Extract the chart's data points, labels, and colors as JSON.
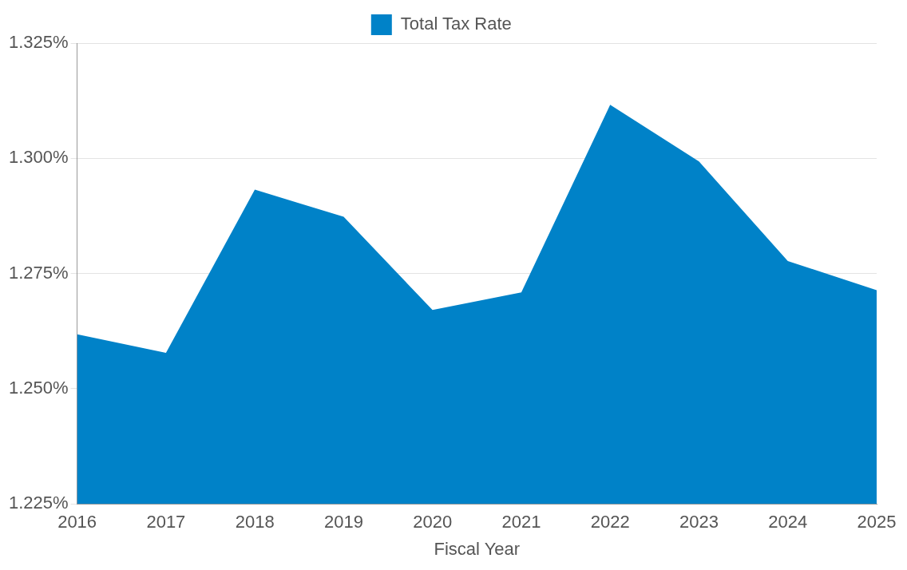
{
  "chart_data": {
    "type": "area",
    "xlabel": "Fiscal Year",
    "categories": [
      "2016",
      "2017",
      "2018",
      "2019",
      "2020",
      "2021",
      "2022",
      "2023",
      "2024",
      "2025"
    ],
    "series": [
      {
        "name": "Total Tax Rate",
        "color": "#0082c8",
        "values": [
          1.2618,
          1.2578,
          1.2932,
          1.2873,
          1.2671,
          1.2709,
          1.3116,
          1.2993,
          1.2777,
          1.2714
        ]
      }
    ],
    "ylim": [
      1.225,
      1.325
    ],
    "yticks": [
      {
        "value": 1.225,
        "label": "1.225%"
      },
      {
        "value": 1.25,
        "label": "1.250%"
      },
      {
        "value": 1.275,
        "label": "1.275%"
      },
      {
        "value": 1.3,
        "label": "1.300%"
      },
      {
        "value": 1.325,
        "label": "1.325%"
      }
    ],
    "grid": "y",
    "legend": "top",
    "marker": "none"
  }
}
